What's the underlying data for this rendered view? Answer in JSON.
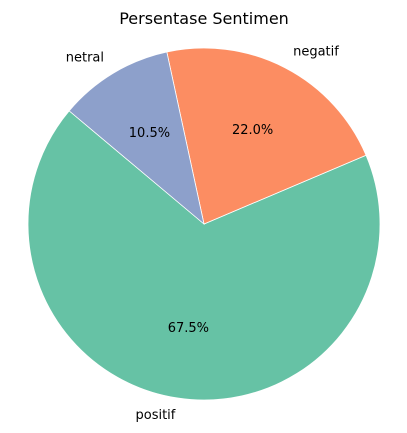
{
  "chart_data": {
    "type": "pie",
    "title": "Persentase Sentimen",
    "start_angle_deg": 140,
    "direction": "counterclockwise",
    "slices": [
      {
        "label": "positif",
        "value": 67.5,
        "pct_label": "67.5%",
        "color": "#66c2a5"
      },
      {
        "label": "negatif",
        "value": 22.0,
        "pct_label": "22.0%",
        "color": "#fc8d62"
      },
      {
        "label": "netral",
        "value": 10.5,
        "pct_label": "10.5%",
        "color": "#8da0cb"
      }
    ],
    "edge_color": "#ffffff"
  }
}
